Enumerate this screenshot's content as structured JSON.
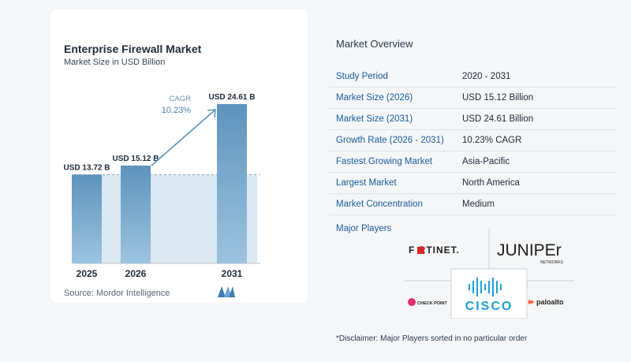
{
  "chart": {
    "title": "Enterprise Firewall Market",
    "subtitle": "Market Size in USD Billion",
    "source": "Source:  Mordor Intelligence",
    "cagr_label": "CAGR",
    "cagr_value": "10.23%"
  },
  "chart_data": {
    "type": "bar",
    "categories": [
      "2025",
      "2026",
      "2031"
    ],
    "values": [
      13.72,
      15.12,
      24.61
    ],
    "value_labels": [
      "USD 13.72 B",
      "USD 15.12 B",
      "USD 24.61 B"
    ],
    "title": "Enterprise Firewall Market",
    "subtitle": "Market Size in USD Billion",
    "xlabel": "",
    "ylabel": "",
    "ylim": [
      0,
      24.61
    ],
    "grid": false,
    "colors": {
      "bar": "#5e93bd",
      "bar_light": "#9cc4df",
      "shade": "#dbe7f1",
      "arrow": "#5e93bd"
    }
  },
  "overview": {
    "title": "Market Overview",
    "rows": [
      {
        "key": "Study Period",
        "value": "2020 - 2031"
      },
      {
        "key": "Market Size (2026)",
        "value": "USD 15.12 Billion"
      },
      {
        "key": "Market Size (2031)",
        "value": "USD 24.61 Billion"
      },
      {
        "key": "Growth Rate (2026 - 2031)",
        "value": "10.23% CAGR"
      },
      {
        "key": "Fastest Growing Market",
        "value": "Asia-Pacific"
      },
      {
        "key": "Largest Market",
        "value": "North America"
      },
      {
        "key": "Market Concentration",
        "value": "Medium"
      }
    ],
    "players_title": "Major Players",
    "players": {
      "fortinet": "F RTINET.",
      "juniper": "JUNIPEr",
      "juniper_sub": "NETWORKS",
      "checkpoint": "CHECK POINT",
      "cisco": "CISCO",
      "paloalto": "paloalto"
    },
    "disclaimer": "*Disclaimer: Major Players sorted in no particular order"
  }
}
